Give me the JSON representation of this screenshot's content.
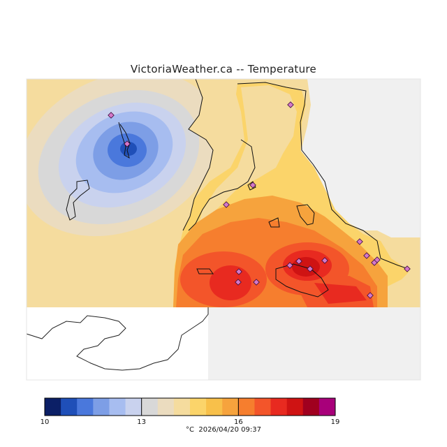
{
  "title": "VictoriaWeather.ca -- Temperature",
  "colorbar": {
    "min": 10,
    "max": 19,
    "tick_labels": [
      "10",
      "13",
      "16",
      "19"
    ],
    "colors": [
      "#0b1f66",
      "#1f4fb8",
      "#4a78dc",
      "#7d9ee6",
      "#a7bdf0",
      "#c9d2ee",
      "#d8d8d8",
      "#ebdcbf",
      "#f5dc9e",
      "#fbd46a",
      "#f8c04a",
      "#f6a33d",
      "#f67e2e",
      "#f3552a",
      "#e82a20",
      "#cf1313",
      "#a0001f",
      "#a8007a"
    ]
  },
  "footer": {
    "unit": "°C",
    "timestamp": "2026/04/20 09:37"
  },
  "legend_colors": {
    "land_background": "#f0f0f0",
    "no_data": "#ffffff",
    "station_marker": "#d478c8"
  }
}
